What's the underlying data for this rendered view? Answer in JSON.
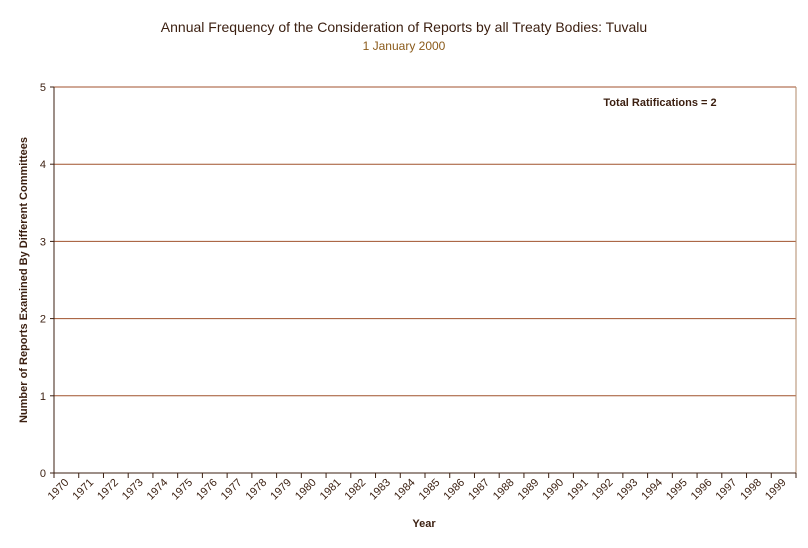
{
  "chart_data": {
    "type": "bar",
    "title": "Annual Frequency of the Consideration of Reports by all Treaty Bodies: Tuvalu",
    "subtitle": "1 January 2000",
    "xlabel": "Year",
    "ylabel": "Number of Reports Examined By Different Committees",
    "categories": [
      "1970",
      "1971",
      "1972",
      "1973",
      "1974",
      "1975",
      "1976",
      "1977",
      "1978",
      "1979",
      "1980",
      "1981",
      "1982",
      "1983",
      "1984",
      "1985",
      "1986",
      "1987",
      "1988",
      "1989",
      "1990",
      "1991",
      "1992",
      "1993",
      "1994",
      "1995",
      "1996",
      "1997",
      "1998",
      "1999"
    ],
    "values": [
      0,
      0,
      0,
      0,
      0,
      0,
      0,
      0,
      0,
      0,
      0,
      0,
      0,
      0,
      0,
      0,
      0,
      0,
      0,
      0,
      0,
      0,
      0,
      0,
      0,
      0,
      0,
      0,
      0,
      0
    ],
    "ylim": [
      0,
      5
    ],
    "yticks": [
      0,
      1,
      2,
      3,
      4,
      5
    ],
    "grid": true,
    "annotation": "Total Ratifications = 2",
    "colors": {
      "grid": "#a0522d",
      "axis": "#3b1f10",
      "text": "#3b1f10",
      "subtitle": "#8a5a1a",
      "bar": "#a0522d"
    }
  }
}
